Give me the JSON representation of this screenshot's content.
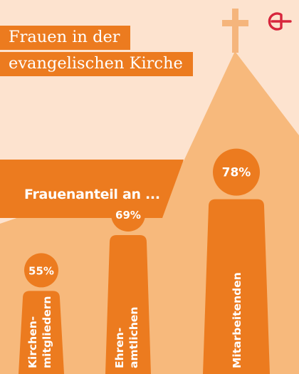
{
  "header": {
    "title_line_1": "Frauen in der",
    "title_line_2": "evangelischen Kirche",
    "subtitle": "Frauenanteil an ..."
  },
  "icons": {
    "logo": "evangelical-cross-logo-icon",
    "cross": "church-cross-icon"
  },
  "colors": {
    "background": "#fde3cf",
    "church_body": "#f7b97c",
    "accent": "#ec7b1f",
    "cross": "#f5b57c",
    "logo": "#d7263d"
  },
  "chart_data": {
    "type": "bar",
    "title": "Frauenanteil an ...",
    "categories": [
      "Kirchen-\nmitgliedern",
      "Ehren-\namtlichen",
      "Mitarbeitenden"
    ],
    "values": [
      55,
      69,
      78
    ],
    "unit": "%",
    "ylim": [
      0,
      100
    ]
  }
}
